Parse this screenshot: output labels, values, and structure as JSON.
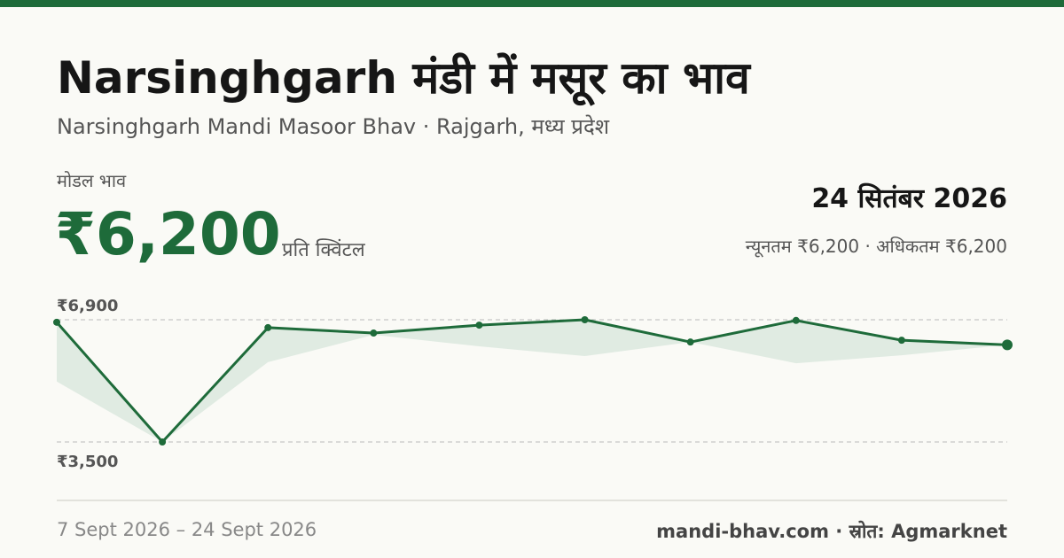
{
  "header": {
    "title": "Narsinghgarh मंडी में मसूर का भाव",
    "subtitle": "Narsinghgarh Mandi Masoor Bhav · Rajgarh, मध्य प्रदेश"
  },
  "price": {
    "label": "मोडल भाव",
    "value": "₹6,200",
    "unit": "प्रति क्विंटल",
    "date": "24 सितंबर 2026",
    "range": "न्यूनतम ₹6,200 · अधिकतम ₹6,200"
  },
  "chart_data": {
    "type": "line",
    "color": "#1e6b3a",
    "band_color": "#dde9e0",
    "values": [
      6830,
      3500,
      6680,
      6530,
      6750,
      6900,
      6280,
      6880,
      6330,
      6200
    ],
    "lower_values": [
      5180,
      3500,
      5720,
      6480,
      6160,
      5890,
      6280,
      5690,
      5910,
      6200
    ],
    "ylim": [
      3500,
      6900
    ],
    "yticks": [
      {
        "value": 6900,
        "label": "₹6,900"
      },
      {
        "value": 3500,
        "label": "₹3,500"
      }
    ],
    "grid": true
  },
  "footer": {
    "date_range": "7 Sept 2026 – 24 Sept 2026",
    "source": "mandi-bhav.com · स्रोत: Agmarknet"
  }
}
